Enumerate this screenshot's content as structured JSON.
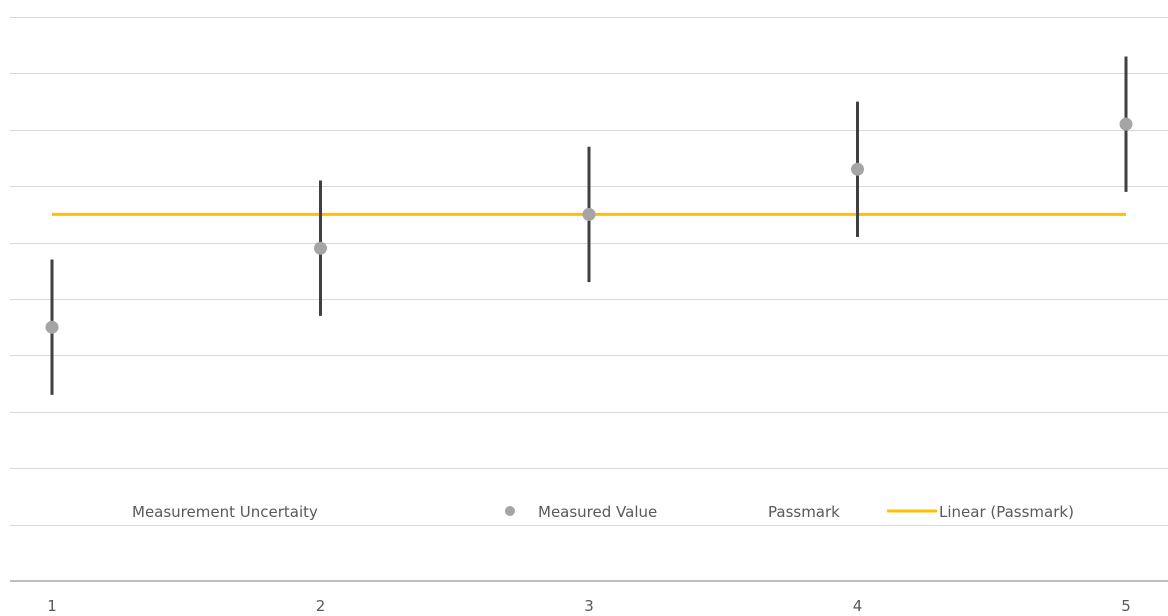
{
  "chart_data": {
    "type": "scatter",
    "x": [
      1,
      2,
      3,
      4,
      5
    ],
    "xlim": [
      1,
      5
    ],
    "ylim": [
      0,
      1.0
    ],
    "grid": true,
    "legend_placement": "bottom",
    "series": [
      {
        "name": "Measured Value",
        "type": "scatter",
        "x": [
          1,
          2,
          3,
          4,
          5
        ],
        "values": [
          0.45,
          0.59,
          0.65,
          0.73,
          0.81
        ],
        "error": [
          0.12,
          0.12,
          0.12,
          0.12,
          0.12
        ],
        "color": "#A5A5A5"
      },
      {
        "name": "Linear (Passmark)",
        "type": "line",
        "x": [
          1,
          5
        ],
        "values": [
          0.65,
          0.65
        ],
        "color": "#FFC000"
      }
    ],
    "errorbar_color": "#404040",
    "grid_color": "#D9D9D9",
    "axis_color": "#BFBFBF",
    "legend": [
      {
        "label": "Measurement Uncertaity",
        "marker": "none"
      },
      {
        "label": "Measured Value",
        "marker": "dot",
        "color": "#A5A5A5"
      },
      {
        "label": "Passmark",
        "marker": "none"
      },
      {
        "label": "Linear (Passmark)",
        "marker": "line",
        "color": "#FFC000"
      }
    ],
    "x_tick_labels": [
      "1",
      "2",
      "3",
      "4",
      "5"
    ]
  }
}
